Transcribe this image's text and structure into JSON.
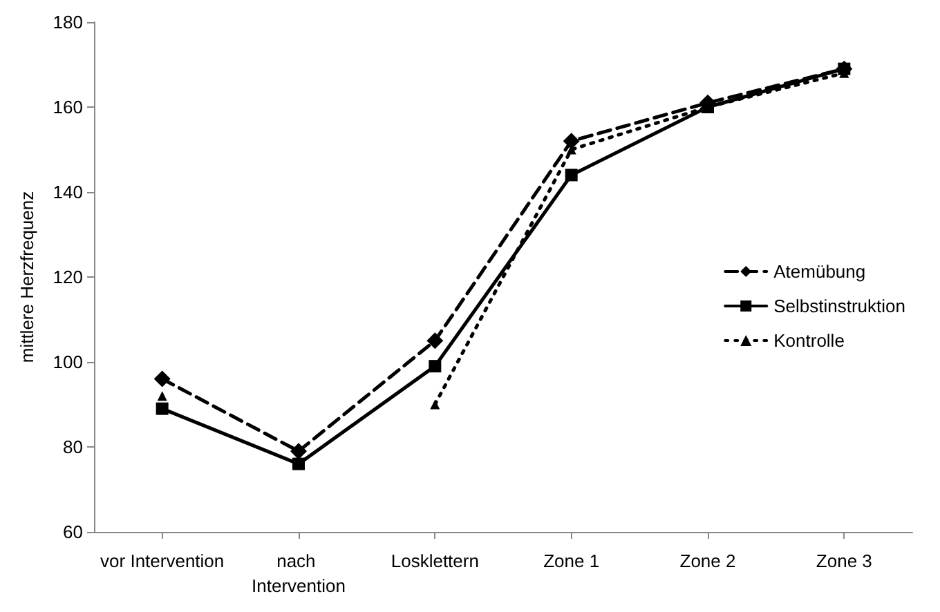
{
  "chart_data": {
    "type": "line",
    "ylabel": "mittlere Herzfrequenz",
    "categories": [
      "vor Intervention",
      "nach Intervention",
      "Losklettern",
      "Zone 1",
      "Zone 2",
      "Zone 3"
    ],
    "series": [
      {
        "name": "Atemübung",
        "color": "#000000",
        "marker": "diamond",
        "line_style": "dashed",
        "values": [
          96,
          79,
          105,
          152,
          161,
          169
        ]
      },
      {
        "name": "Selbstinstruktion",
        "color": "#000000",
        "marker": "square",
        "line_style": "solid",
        "values": [
          89,
          76,
          99,
          144,
          160,
          169
        ]
      },
      {
        "name": "Kontrolle",
        "color": "#000000",
        "marker": "triangle",
        "line_style": "dotted",
        "values": [
          92,
          null,
          90,
          150,
          160,
          168
        ]
      }
    ],
    "ylim": [
      60,
      180
    ],
    "yticks": [
      60,
      80,
      100,
      120,
      140,
      160,
      180
    ],
    "grid": false,
    "legend": "right"
  }
}
